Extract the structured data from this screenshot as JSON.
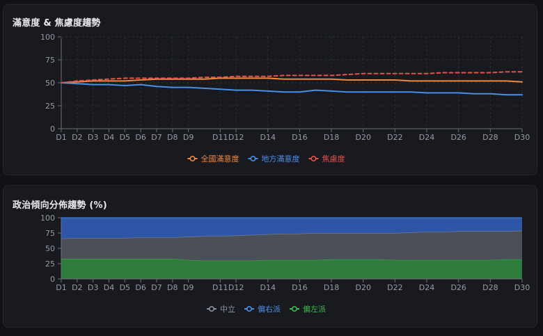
{
  "chart_data": [
    {
      "type": "line",
      "title": "滿意度 & 焦慮度趨勢",
      "ylim": [
        0,
        100
      ],
      "yticks": [
        0,
        25,
        50,
        75,
        100
      ],
      "x_count": 30,
      "x_tick_labels": [
        "D1",
        "D2",
        "D3",
        "D4",
        "D5",
        "D6",
        "D7",
        "D8",
        "D9",
        "D11",
        "D12",
        "D14",
        "D16",
        "D18",
        "D20",
        "D22",
        "D24",
        "D26",
        "D28",
        "D30"
      ],
      "x_tick_days": [
        1,
        2,
        3,
        4,
        5,
        6,
        7,
        8,
        9,
        11,
        12,
        14,
        16,
        18,
        20,
        22,
        24,
        26,
        28,
        30
      ],
      "grid": true,
      "legend_position": "bottom",
      "series": [
        {
          "name": "全國滿意度",
          "color": "#f0883e",
          "dashed": false,
          "values": [
            50,
            51,
            52,
            52,
            52,
            53,
            54,
            54,
            54,
            54,
            55,
            55,
            55,
            55,
            54,
            54,
            54,
            54,
            53,
            53,
            53,
            53,
            52,
            52,
            52,
            52,
            52,
            52,
            52,
            51
          ]
        },
        {
          "name": "地方滿意度",
          "color": "#4a8fe7",
          "dashed": false,
          "values": [
            50,
            49,
            48,
            48,
            47,
            48,
            46,
            45,
            45,
            44,
            43,
            42,
            42,
            41,
            40,
            40,
            42,
            41,
            40,
            40,
            40,
            40,
            40,
            39,
            39,
            39,
            38,
            38,
            37,
            37
          ]
        },
        {
          "name": "焦慮度",
          "color": "#e5534b",
          "dashed": true,
          "values": [
            50,
            52,
            53,
            54,
            55,
            55,
            55,
            55,
            55,
            56,
            56,
            57,
            57,
            57,
            58,
            58,
            58,
            58,
            59,
            60,
            60,
            60,
            60,
            60,
            61,
            61,
            61,
            61,
            62,
            62
          ]
        }
      ]
    },
    {
      "type": "area",
      "stacked": true,
      "title": "政治傾向分佈趨勢 (%)",
      "ylim": [
        0,
        100
      ],
      "yticks": [
        0,
        25,
        50,
        75,
        100
      ],
      "x_count": 30,
      "x_tick_labels": [
        "D1",
        "D2",
        "D3",
        "D4",
        "D5",
        "D6",
        "D7",
        "D8",
        "D9",
        "D11",
        "D12",
        "D14",
        "D16",
        "D18",
        "D20",
        "D22",
        "D24",
        "D26",
        "D28",
        "D30"
      ],
      "x_tick_days": [
        1,
        2,
        3,
        4,
        5,
        6,
        7,
        8,
        9,
        11,
        12,
        14,
        16,
        18,
        20,
        22,
        24,
        26,
        28,
        30
      ],
      "legend_position": "bottom",
      "series": [
        {
          "name": "偏左派",
          "color": "#3fb950",
          "fill": "#2e7d3c",
          "values": [
            33,
            33,
            33,
            33,
            33,
            33,
            33,
            33,
            31,
            30,
            30,
            30,
            30,
            31,
            31,
            31,
            31,
            32,
            32,
            32,
            32,
            31,
            31,
            31,
            31,
            31,
            31,
            31,
            32,
            32
          ]
        },
        {
          "name": "中立",
          "color": "#8b949e",
          "fill": "#4b4f58",
          "values": [
            33,
            34,
            34,
            34,
            34,
            35,
            35,
            35,
            38,
            40,
            40,
            41,
            42,
            42,
            43,
            43,
            44,
            43,
            43,
            43,
            43,
            44,
            45,
            46,
            46,
            47,
            47,
            47,
            46,
            47
          ]
        },
        {
          "name": "偏右派",
          "color": "#4a8fe7",
          "fill": "#2f56a6",
          "values": [
            34,
            33,
            33,
            33,
            33,
            32,
            32,
            32,
            31,
            30,
            30,
            29,
            28,
            27,
            26,
            26,
            25,
            25,
            25,
            25,
            25,
            25,
            24,
            23,
            23,
            22,
            22,
            22,
            22,
            21
          ]
        }
      ],
      "legend_order": [
        "中立",
        "偏右派",
        "偏左派"
      ]
    }
  ]
}
